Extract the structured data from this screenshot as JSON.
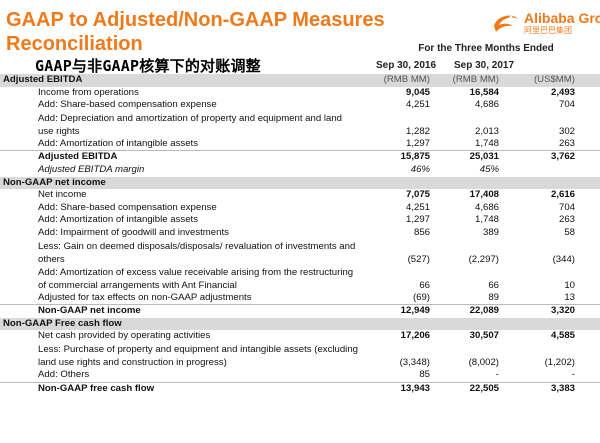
{
  "header": {
    "title": "GAAP to Adjusted/Non-GAAP Measures Reconciliation",
    "subtitle": "GAAP与非GAAP核算下的对账调整",
    "logo_text": "Alibaba Group",
    "logo_sub": "阿里巴巴集团",
    "period": "For the Three Months Ended",
    "columns": [
      "Sep 30, 2016",
      "Sep 30, 2017",
      ""
    ]
  },
  "sections": [
    {
      "title": "Adjusted EBITDA",
      "units": [
        "(RMB MM)",
        "(RMB MM)",
        "(US$MM)"
      ],
      "rows": [
        {
          "label": "Income from operations",
          "values": [
            "9,045",
            "16,584",
            "2,493"
          ],
          "bold_values": true
        },
        {
          "label": "Add: Share-based compensation expense",
          "values": [
            "4,251",
            "4,686",
            "704"
          ]
        },
        {
          "label": "Add: Depreciation and amortization of property and equipment and land use rights",
          "values": [
            "1,282",
            "2,013",
            "302"
          ],
          "tall": true
        },
        {
          "label": "Add: Amortization of intangible assets",
          "values": [
            "1,297",
            "1,748",
            "263"
          ]
        },
        {
          "label": "Adjusted EBITDA",
          "values": [
            "15,875",
            "25,031",
            "3,762"
          ],
          "bold": true
        },
        {
          "label": "Adjusted EBITDA margin",
          "values": [
            "46%",
            "45%",
            ""
          ],
          "italic": true
        }
      ]
    },
    {
      "title": "Non-GAAP net income",
      "rows": [
        {
          "label": "Net income",
          "values": [
            "7,075",
            "17,408",
            "2,616"
          ],
          "bold_values": true
        },
        {
          "label": "Add: Share-based compensation expense",
          "values": [
            "4,251",
            "4,686",
            "704"
          ]
        },
        {
          "label": "Add: Amortization of intangible assets",
          "values": [
            "1,297",
            "1,748",
            "263"
          ]
        },
        {
          "label": "Add: Impairment of goodwill and investments",
          "values": [
            "856",
            "389",
            "58"
          ]
        },
        {
          "label": "Less: Gain on deemed disposals/disposals/ revaluation of investments and others",
          "values": [
            "(527)",
            "(2,297)",
            "(344)"
          ],
          "tall": true
        },
        {
          "label": "Add: Amortization of excess value receivable arising from the restructuring of commercial arrangements with Ant Financial",
          "values": [
            "66",
            "66",
            "10"
          ],
          "tall": true
        },
        {
          "label": "Adjusted for tax effects on non-GAAP adjustments",
          "values": [
            "(69)",
            "89",
            "13"
          ]
        },
        {
          "label": "Non-GAAP net income",
          "values": [
            "12,949",
            "22,089",
            "3,320"
          ],
          "bold": true
        }
      ]
    },
    {
      "title": "Non-GAAP Free cash flow",
      "rows": [
        {
          "label": "Net cash provided by operating activities",
          "values": [
            "17,206",
            "30,507",
            "4,585"
          ],
          "bold_values": true
        },
        {
          "label": "Less: Purchase of property and equipment and intangible assets (excluding land use rights and construction in progress)",
          "values": [
            "(3,348)",
            "(8,002)",
            "(1,202)"
          ],
          "tall": true
        },
        {
          "label": "Add: Others",
          "values": [
            "85",
            "-",
            "-"
          ]
        },
        {
          "label": "Non-GAAP free cash flow",
          "values": [
            "13,943",
            "22,505",
            "3,383"
          ],
          "bold": true
        }
      ]
    }
  ]
}
